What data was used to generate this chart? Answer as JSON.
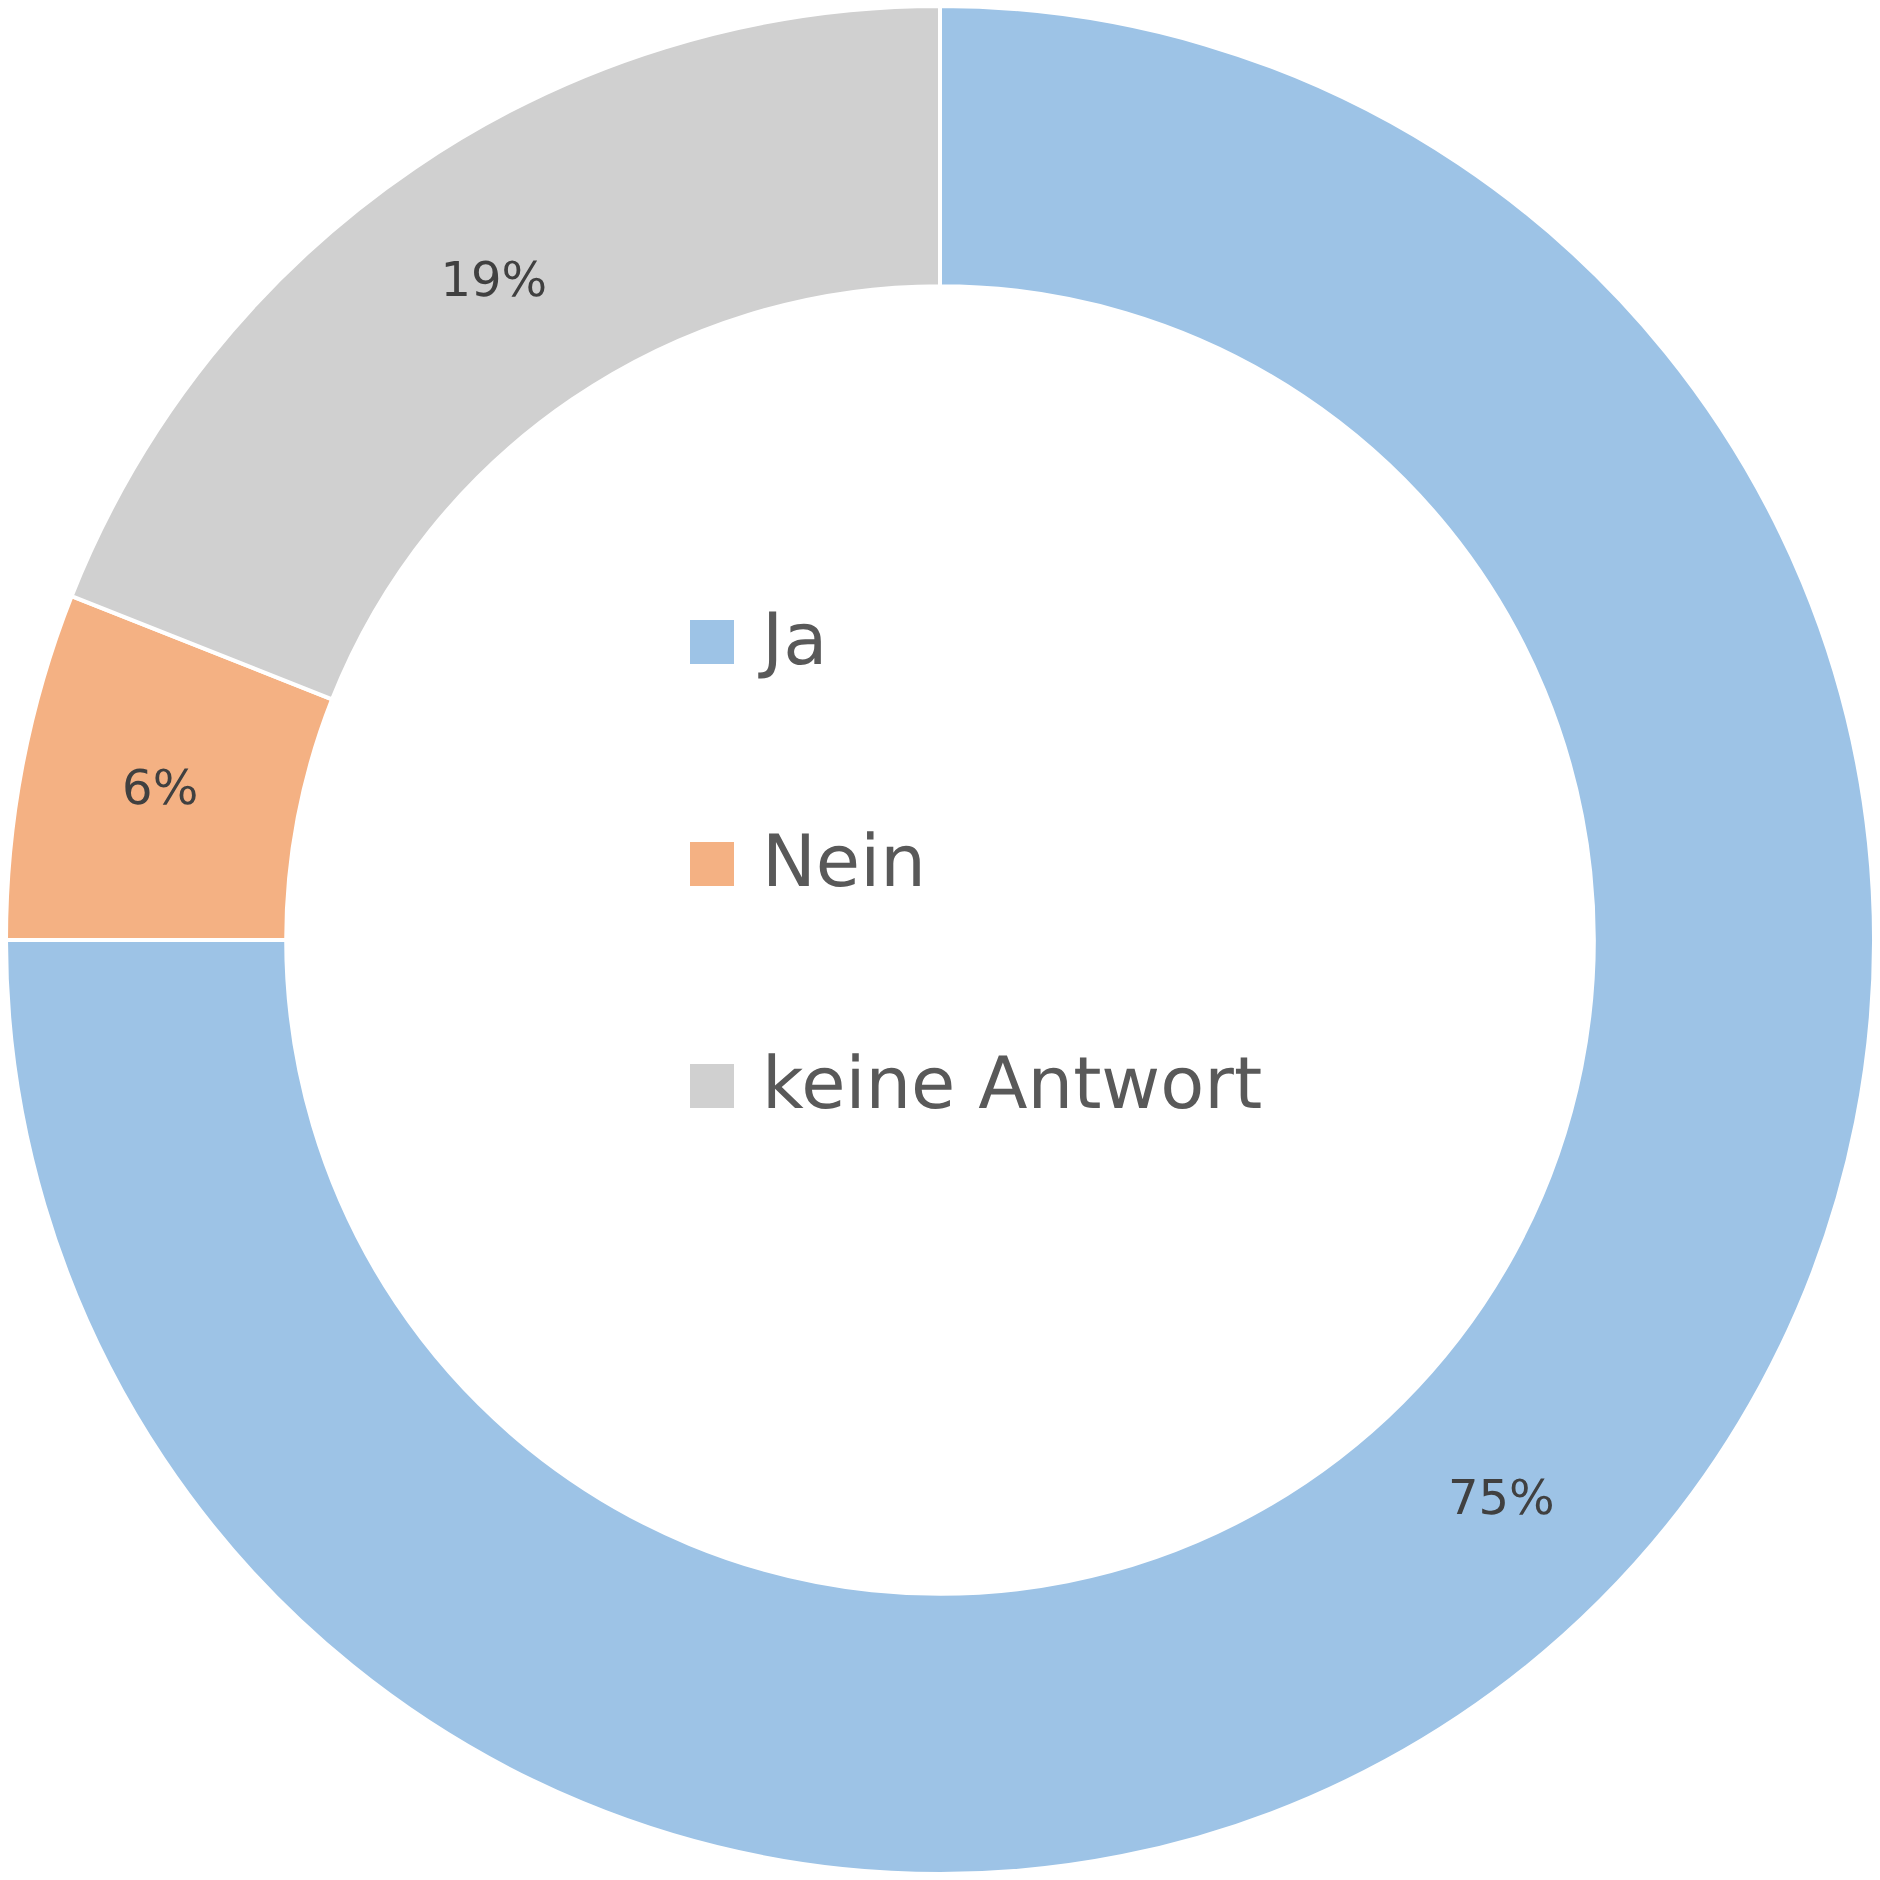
{
  "chart_data": {
    "type": "donut",
    "categories": [
      "Ja",
      "Nein",
      "keine Antwort"
    ],
    "values": [
      75,
      6,
      19
    ],
    "value_labels": [
      "75%",
      "6%",
      "19%"
    ],
    "colors": [
      "#9dc3e6",
      "#f4b183",
      "#d0d0d0"
    ],
    "legend": "center"
  }
}
